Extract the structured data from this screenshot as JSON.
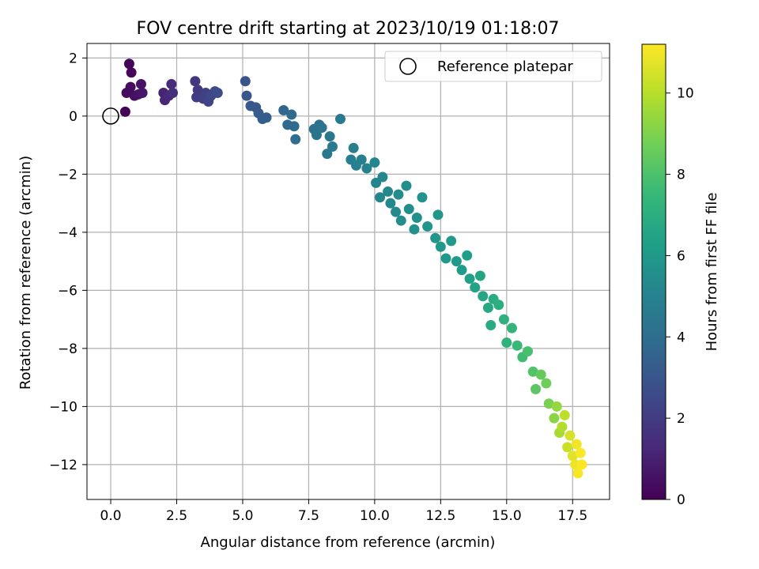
{
  "chart_data": {
    "type": "scatter",
    "title": "FOV centre drift starting at 2023/10/19 01:18:07",
    "xlabel": "Angular distance from reference (arcmin)",
    "ylabel": "Rotation from reference (arcmin)",
    "xlim": [
      -0.9,
      18.9
    ],
    "ylim": [
      -13.2,
      2.5
    ],
    "xticks": [
      0.0,
      2.5,
      5.0,
      7.5,
      10.0,
      12.5,
      15.0,
      17.5
    ],
    "xtick_labels": [
      "0.0",
      "2.5",
      "5.0",
      "7.5",
      "10.0",
      "12.5",
      "15.0",
      "17.5"
    ],
    "yticks": [
      2,
      0,
      -2,
      -4,
      -6,
      -8,
      -10,
      -12
    ],
    "ytick_labels": [
      "2",
      "0",
      "−2",
      "−4",
      "−6",
      "−8",
      "−10",
      "−12"
    ],
    "grid": true,
    "legend": {
      "position": "top-right",
      "entries": [
        {
          "label": "Reference platepar",
          "marker": "open-circle"
        }
      ]
    },
    "reference_point": {
      "x": 0.0,
      "y": 0.0
    },
    "colorbar": {
      "label": "Hours from first FF file",
      "colormap": "viridis",
      "range": [
        0,
        11.2
      ],
      "ticks": [
        0,
        2,
        4,
        6,
        8,
        10
      ],
      "tick_labels": [
        "0",
        "2",
        "4",
        "6",
        "8",
        "10"
      ],
      "stops": [
        "#440154",
        "#482878",
        "#3e4989",
        "#31688e",
        "#26828e",
        "#1f9e89",
        "#35b779",
        "#6ece58",
        "#b5de2b",
        "#fde725"
      ]
    },
    "series": [
      {
        "color_by": "hours",
        "points": [
          {
            "x": 0.55,
            "y": 0.15,
            "h": 0.05
          },
          {
            "x": 0.7,
            "y": 1.8,
            "h": 0.1
          },
          {
            "x": 0.78,
            "y": 1.5,
            "h": 0.2
          },
          {
            "x": 0.6,
            "y": 0.8,
            "h": 0.3
          },
          {
            "x": 0.75,
            "y": 1.0,
            "h": 0.35
          },
          {
            "x": 0.9,
            "y": 0.7,
            "h": 0.45
          },
          {
            "x": 1.05,
            "y": 0.75,
            "h": 0.55
          },
          {
            "x": 1.15,
            "y": 1.1,
            "h": 0.6
          },
          {
            "x": 1.2,
            "y": 0.8,
            "h": 0.7
          },
          {
            "x": 2.0,
            "y": 0.8,
            "h": 1.1
          },
          {
            "x": 2.05,
            "y": 0.55,
            "h": 1.2
          },
          {
            "x": 2.2,
            "y": 0.7,
            "h": 1.3
          },
          {
            "x": 2.3,
            "y": 1.1,
            "h": 1.4
          },
          {
            "x": 2.35,
            "y": 0.8,
            "h": 1.5
          },
          {
            "x": 3.2,
            "y": 1.2,
            "h": 1.8
          },
          {
            "x": 3.3,
            "y": 0.9,
            "h": 1.9
          },
          {
            "x": 3.25,
            "y": 0.65,
            "h": 2.0
          },
          {
            "x": 3.5,
            "y": 0.6,
            "h": 2.1
          },
          {
            "x": 3.6,
            "y": 0.8,
            "h": 2.2
          },
          {
            "x": 3.7,
            "y": 0.5,
            "h": 2.3
          },
          {
            "x": 3.8,
            "y": 0.7,
            "h": 2.4
          },
          {
            "x": 3.95,
            "y": 0.85,
            "h": 2.5
          },
          {
            "x": 4.05,
            "y": 0.8,
            "h": 2.6
          },
          {
            "x": 5.1,
            "y": 1.2,
            "h": 2.9
          },
          {
            "x": 5.15,
            "y": 0.7,
            "h": 3.0
          },
          {
            "x": 5.3,
            "y": 0.35,
            "h": 3.05
          },
          {
            "x": 5.5,
            "y": 0.3,
            "h": 3.1
          },
          {
            "x": 5.6,
            "y": 0.1,
            "h": 3.2
          },
          {
            "x": 5.75,
            "y": -0.1,
            "h": 3.3
          },
          {
            "x": 5.9,
            "y": -0.05,
            "h": 3.35
          },
          {
            "x": 6.55,
            "y": 0.2,
            "h": 3.7
          },
          {
            "x": 6.7,
            "y": -0.3,
            "h": 3.8
          },
          {
            "x": 6.85,
            "y": 0.05,
            "h": 3.85
          },
          {
            "x": 6.95,
            "y": -0.35,
            "h": 3.9
          },
          {
            "x": 7.0,
            "y": -0.8,
            "h": 4.0
          },
          {
            "x": 7.7,
            "y": -0.45,
            "h": 4.2
          },
          {
            "x": 7.8,
            "y": -0.65,
            "h": 4.25
          },
          {
            "x": 7.9,
            "y": -0.3,
            "h": 4.3
          },
          {
            "x": 8.0,
            "y": -0.4,
            "h": 4.35
          },
          {
            "x": 8.2,
            "y": -1.3,
            "h": 4.45
          },
          {
            "x": 8.3,
            "y": -0.7,
            "h": 4.5
          },
          {
            "x": 8.4,
            "y": -1.05,
            "h": 4.55
          },
          {
            "x": 8.7,
            "y": -0.1,
            "h": 4.6
          },
          {
            "x": 9.1,
            "y": -1.5,
            "h": 4.8
          },
          {
            "x": 9.2,
            "y": -1.1,
            "h": 4.85
          },
          {
            "x": 9.3,
            "y": -1.7,
            "h": 4.9
          },
          {
            "x": 9.5,
            "y": -1.5,
            "h": 4.95
          },
          {
            "x": 9.7,
            "y": -1.8,
            "h": 5.0
          },
          {
            "x": 10.0,
            "y": -1.6,
            "h": 5.05
          },
          {
            "x": 10.05,
            "y": -2.3,
            "h": 5.1
          },
          {
            "x": 10.2,
            "y": -2.8,
            "h": 5.15
          },
          {
            "x": 10.3,
            "y": -2.1,
            "h": 5.2
          },
          {
            "x": 10.5,
            "y": -2.6,
            "h": 5.25
          },
          {
            "x": 10.6,
            "y": -3.0,
            "h": 5.3
          },
          {
            "x": 10.8,
            "y": -3.3,
            "h": 5.35
          },
          {
            "x": 10.9,
            "y": -2.7,
            "h": 5.4
          },
          {
            "x": 11.0,
            "y": -3.6,
            "h": 5.45
          },
          {
            "x": 11.2,
            "y": -2.4,
            "h": 5.5
          },
          {
            "x": 11.3,
            "y": -3.2,
            "h": 5.55
          },
          {
            "x": 11.5,
            "y": -3.9,
            "h": 5.6
          },
          {
            "x": 11.6,
            "y": -3.5,
            "h": 5.65
          },
          {
            "x": 11.8,
            "y": -2.8,
            "h": 5.7
          },
          {
            "x": 12.0,
            "y": -3.8,
            "h": 5.8
          },
          {
            "x": 12.3,
            "y": -4.2,
            "h": 5.85
          },
          {
            "x": 12.4,
            "y": -3.4,
            "h": 5.9
          },
          {
            "x": 12.5,
            "y": -4.5,
            "h": 5.95
          },
          {
            "x": 12.7,
            "y": -4.9,
            "h": 6.0
          },
          {
            "x": 12.9,
            "y": -4.3,
            "h": 6.05
          },
          {
            "x": 13.1,
            "y": -5.0,
            "h": 6.1
          },
          {
            "x": 13.3,
            "y": -5.3,
            "h": 6.15
          },
          {
            "x": 13.5,
            "y": -4.8,
            "h": 6.2
          },
          {
            "x": 13.6,
            "y": -5.6,
            "h": 6.3
          },
          {
            "x": 13.8,
            "y": -5.9,
            "h": 6.4
          },
          {
            "x": 14.0,
            "y": -5.5,
            "h": 6.5
          },
          {
            "x": 14.1,
            "y": -6.2,
            "h": 6.6
          },
          {
            "x": 14.3,
            "y": -6.6,
            "h": 6.7
          },
          {
            "x": 14.4,
            "y": -7.2,
            "h": 6.8
          },
          {
            "x": 14.5,
            "y": -6.3,
            "h": 6.9
          },
          {
            "x": 14.7,
            "y": -6.5,
            "h": 7.0
          },
          {
            "x": 14.9,
            "y": -7.0,
            "h": 7.1
          },
          {
            "x": 15.0,
            "y": -7.8,
            "h": 7.2
          },
          {
            "x": 15.2,
            "y": -7.3,
            "h": 7.3
          },
          {
            "x": 15.4,
            "y": -7.9,
            "h": 7.5
          },
          {
            "x": 15.6,
            "y": -8.3,
            "h": 7.7
          },
          {
            "x": 15.8,
            "y": -8.1,
            "h": 7.9
          },
          {
            "x": 16.0,
            "y": -8.8,
            "h": 8.1
          },
          {
            "x": 16.1,
            "y": -9.4,
            "h": 8.3
          },
          {
            "x": 16.3,
            "y": -8.9,
            "h": 8.5
          },
          {
            "x": 16.5,
            "y": -9.2,
            "h": 8.7
          },
          {
            "x": 16.6,
            "y": -9.9,
            "h": 8.9
          },
          {
            "x": 16.8,
            "y": -10.4,
            "h": 9.2
          },
          {
            "x": 16.9,
            "y": -10.0,
            "h": 9.4
          },
          {
            "x": 17.0,
            "y": -10.9,
            "h": 9.7
          },
          {
            "x": 17.1,
            "y": -10.7,
            "h": 9.9
          },
          {
            "x": 17.2,
            "y": -10.3,
            "h": 10.1
          },
          {
            "x": 17.3,
            "y": -11.4,
            "h": 10.3
          },
          {
            "x": 17.4,
            "y": -11.0,
            "h": 10.5
          },
          {
            "x": 17.5,
            "y": -11.7,
            "h": 10.7
          },
          {
            "x": 17.6,
            "y": -12.0,
            "h": 10.9
          },
          {
            "x": 17.65,
            "y": -11.3,
            "h": 11.0
          },
          {
            "x": 17.7,
            "y": -12.3,
            "h": 11.1
          },
          {
            "x": 17.8,
            "y": -11.6,
            "h": 11.15
          },
          {
            "x": 17.85,
            "y": -12.0,
            "h": 11.2
          }
        ]
      }
    ]
  }
}
